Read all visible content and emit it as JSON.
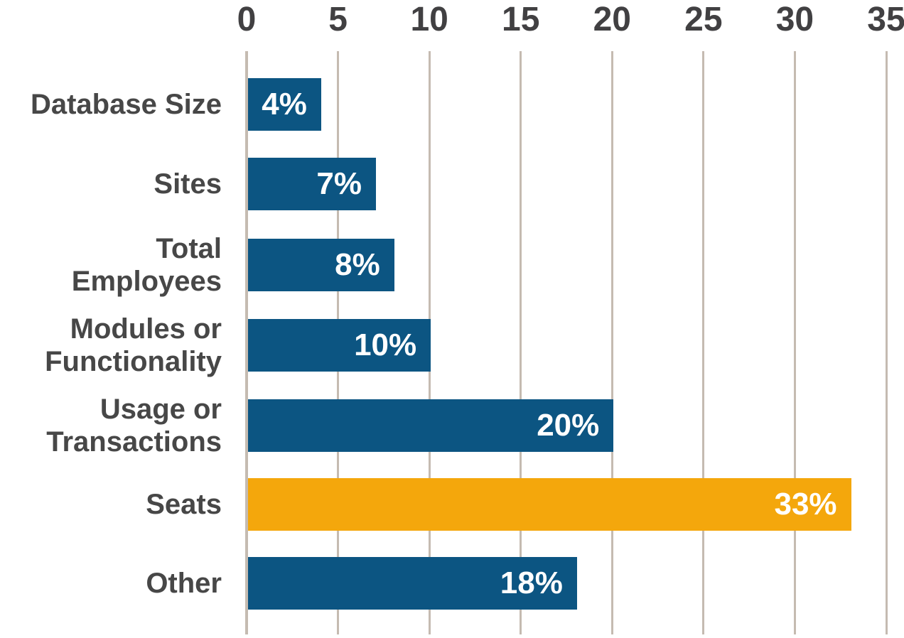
{
  "chart_data": {
    "type": "bar",
    "orientation": "horizontal",
    "title": "",
    "xlabel": "",
    "ylabel": "",
    "axis_position": "top",
    "grid": true,
    "legend": false,
    "xlim": [
      0,
      35
    ],
    "x_ticks": [
      0,
      5,
      10,
      15,
      20,
      25,
      30,
      35
    ],
    "categories": [
      "Database Size",
      "Sites",
      "Total Employees",
      "Modules or\nFunctionality",
      "Usage or\nTransactions",
      "Seats",
      "Other"
    ],
    "values": [
      4,
      7,
      8,
      10,
      20,
      33,
      18
    ],
    "value_labels": [
      "4%",
      "7%",
      "8%",
      "10%",
      "20%",
      "33%",
      "18%"
    ],
    "highlight_index": 5,
    "colors": {
      "bar": "#0C5582",
      "highlight_bar": "#F4A70C",
      "gridline": "#C5BBB1",
      "tick_label": "#414042",
      "category_label": "#474747",
      "value_label": "#FFFFFF",
      "background": "#FFFFFF"
    }
  }
}
